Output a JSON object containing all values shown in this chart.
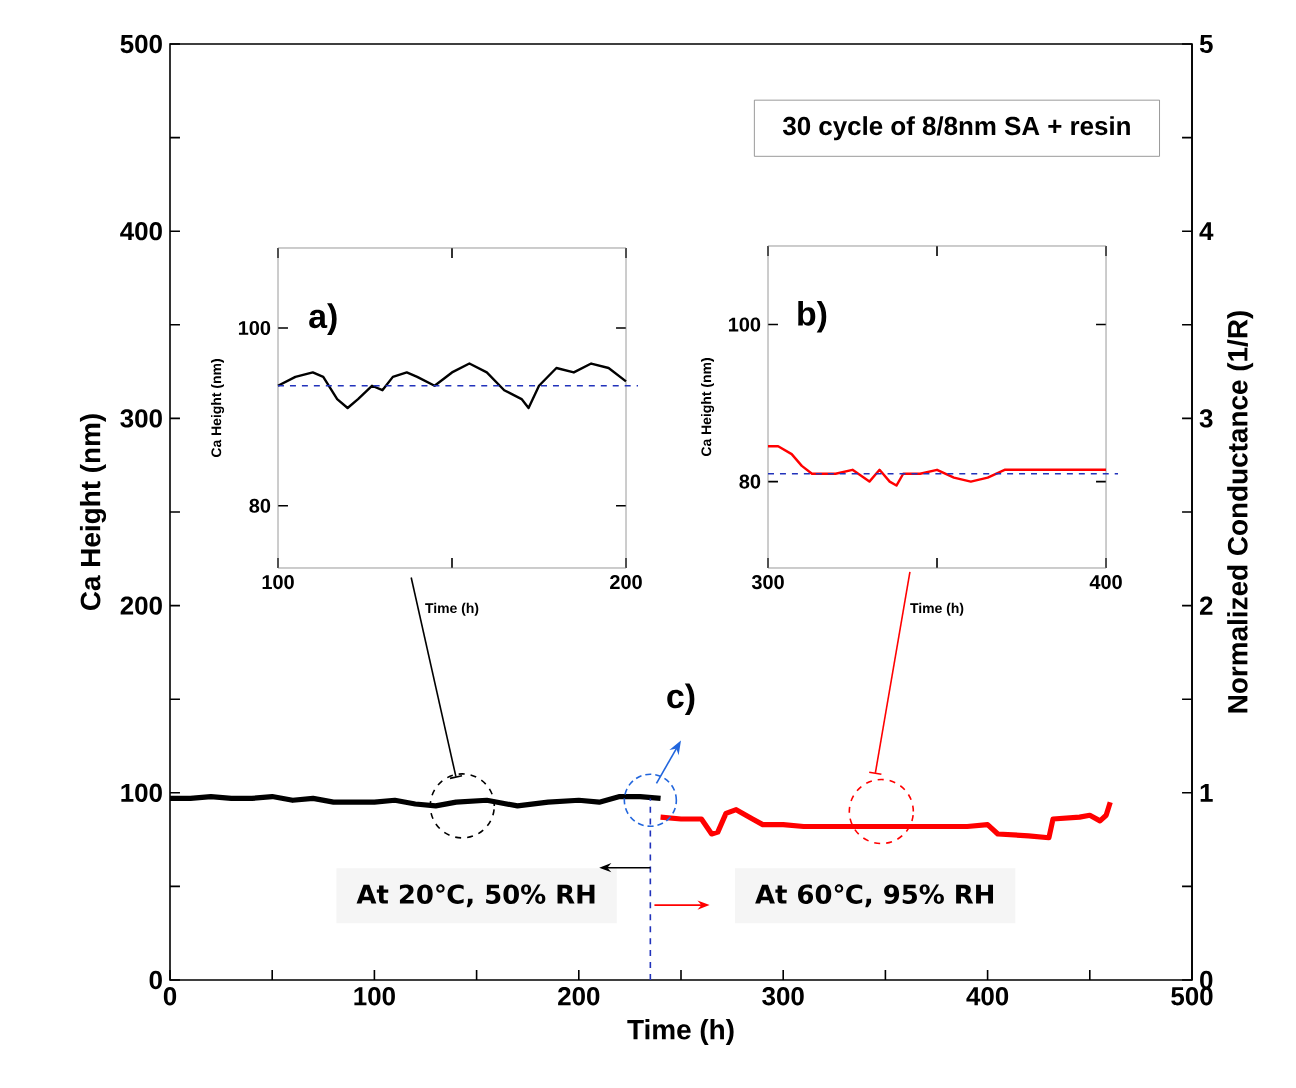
{
  "chart_data": [
    {
      "type": "line",
      "xlabel": "Time (h)",
      "ylabel": "Ca Height (nm)",
      "y2label": "Normalized Conductance (1/R)",
      "xlim": [
        0,
        500
      ],
      "xticks": [
        0,
        {
          "value": 50,
          "label": null
        },
        100,
        {
          "value": 150,
          "label": null
        },
        200,
        {
          "value": 250,
          "label": null
        },
        300,
        {
          "value": 350,
          "label": null
        },
        400,
        {
          "value": 450,
          "label": null
        },
        500
      ],
      "ylim": [
        0,
        500
      ],
      "yticks": [
        0,
        {
          "value": 50,
          "label": null
        },
        100,
        {
          "value": 150,
          "label": null
        },
        200,
        {
          "value": 250,
          "label": null
        },
        300,
        {
          "value": 350,
          "label": null
        },
        400,
        {
          "value": 450,
          "label": null
        },
        500
      ],
      "y2lim": [
        0,
        5
      ],
      "y2ticks": [
        0,
        {
          "value": 0.5,
          "label": null
        },
        1,
        {
          "value": 1.5,
          "label": null
        },
        2,
        {
          "value": 2.5,
          "label": null
        },
        3,
        {
          "value": 3.5,
          "label": null
        },
        4,
        {
          "value": 4.5,
          "label": null
        },
        5
      ],
      "series": [
        {
          "color": "#000000",
          "x": [
            0,
            10,
            20,
            30,
            40,
            50,
            60,
            70,
            80,
            95,
            100,
            110,
            120,
            130,
            140,
            155,
            170,
            185,
            200,
            210,
            220,
            230,
            240
          ],
          "values": [
            97,
            97,
            98,
            97,
            97,
            98,
            96,
            97,
            95,
            95,
            95,
            96,
            94,
            93,
            95,
            96,
            93,
            95,
            96,
            95,
            98,
            98,
            97
          ]
        },
        {
          "color": "#ff0000",
          "x": [
            240,
            250,
            260,
            265,
            268,
            272,
            277,
            285,
            290,
            300,
            310,
            330,
            350,
            370,
            390,
            400,
            405,
            420,
            430,
            432,
            445,
            450,
            455,
            458,
            460
          ],
          "values": [
            87,
            86,
            86,
            78,
            79,
            89,
            91,
            86,
            83,
            83,
            82,
            82,
            82,
            82,
            82,
            83,
            78,
            77,
            76,
            86,
            87,
            88,
            85,
            88,
            95
          ]
        }
      ],
      "ref_lines": [
        {
          "axis": "x",
          "value": 235,
          "color": "#2233bb",
          "line_style": "dashed"
        }
      ],
      "annotations": [
        "30 cycle of 8/8nm SA + resin",
        "c)",
        "At 20℃, 50% RH",
        "At 60℃, 95% RH"
      ]
    },
    {
      "type": "line",
      "xlabel": "Time (h)",
      "ylabel": "Ca Height (nm)",
      "xlim": [
        100,
        200
      ],
      "xticks": [
        100,
        {
          "value": 150,
          "label": null
        },
        200
      ],
      "ylim": [
        73,
        109
      ],
      "yticks": [
        80,
        100
      ],
      "series": [
        {
          "color": "#000000",
          "x": [
            100,
            105,
            110,
            113,
            117,
            120,
            123,
            127,
            130,
            133,
            137,
            140,
            145,
            150,
            155,
            160,
            165,
            170,
            172,
            175,
            180,
            185,
            190,
            195,
            200
          ],
          "values": [
            93.5,
            94.5,
            95,
            94.5,
            92,
            91,
            92,
            93.5,
            93,
            94.5,
            95,
            94.5,
            93.5,
            95,
            96,
            95,
            93,
            92,
            91,
            93.5,
            95.5,
            95,
            96,
            95.5,
            94
          ]
        }
      ],
      "ref_lines": [
        {
          "axis": "y",
          "value": 93.5,
          "color": "#2233bb",
          "line_style": "dashed"
        }
      ],
      "annotations": [
        "a)"
      ]
    },
    {
      "type": "line",
      "xlabel": "Time (h)",
      "ylabel": "Ca Height (nm)",
      "xlim": [
        300,
        400
      ],
      "xticks": [
        300,
        {
          "value": 350,
          "label": null
        },
        400
      ],
      "ylim": [
        69,
        110
      ],
      "yticks": [
        80,
        100
      ],
      "series": [
        {
          "color": "#ff0000",
          "x": [
            300,
            303,
            307,
            310,
            313,
            320,
            325,
            330,
            333,
            336,
            338,
            340,
            345,
            350,
            355,
            360,
            365,
            370,
            380,
            390,
            400
          ],
          "values": [
            84.5,
            84.5,
            83.5,
            82,
            81,
            81,
            81.5,
            80,
            81.5,
            80,
            79.5,
            81,
            81,
            81.5,
            80.5,
            80,
            80.5,
            81.5,
            81.5,
            81.5,
            81.5
          ]
        }
      ],
      "ref_lines": [
        {
          "axis": "y",
          "value": 81,
          "color": "#2233bb",
          "line_style": "dashed"
        }
      ],
      "annotations": [
        "b)"
      ]
    }
  ]
}
